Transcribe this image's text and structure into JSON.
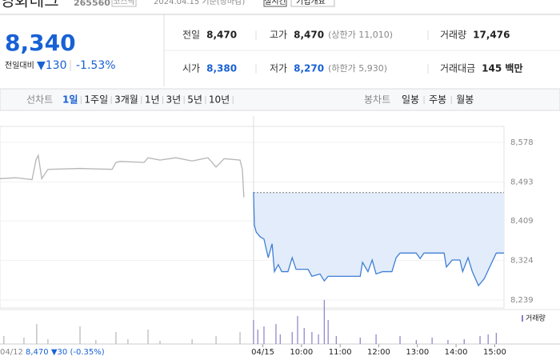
{
  "header": {
    "name": "영화테크",
    "code": "265560",
    "market": "코스닥",
    "date": "2024.04.15 기준(장마감)",
    "realtime": "실시간",
    "company": "기업개요"
  },
  "price": {
    "current": "8,340",
    "change_label": "전일대비",
    "change": "▼130",
    "change_pct": "-1.53%"
  },
  "summary": {
    "rows": [
      [
        {
          "label": "전일",
          "value": "8,470"
        },
        {
          "label": "고가",
          "value": "8,470",
          "note": "(상한가 11,010)"
        },
        {
          "label": "거래량",
          "value": "17,476"
        }
      ],
      [
        {
          "label": "시가",
          "value": "8,380"
        },
        {
          "label": "저가",
          "value": "8,270",
          "note": "(하한가 5,930)"
        },
        {
          "label": "거래대금",
          "value": "145 백만"
        }
      ]
    ]
  },
  "tabs": {
    "line_label": "선차트",
    "line_periods": [
      "1일",
      "1주일",
      "3개월",
      "1년",
      "3년",
      "5년",
      "10년"
    ],
    "selected": 0,
    "candle_label": "봉차트",
    "candle_periods": [
      "일봉",
      "주봉",
      "월봉"
    ]
  },
  "footer_info": {
    "date": "04/12",
    "price": "8,470",
    "change": "▼30",
    "change_pct": "(-0.35%)"
  },
  "chart_data": {
    "type": "line",
    "xlim": [
      2.2,
      15.24
    ],
    "ylim": [
      8239,
      8578
    ],
    "yticks": [
      {
        "value": 8578,
        "label": "8,578"
      },
      {
        "value": 8493,
        "label": "8,493"
      },
      {
        "value": 8409,
        "label": "8,409"
      },
      {
        "value": 8324,
        "label": "8,324"
      },
      {
        "value": 8239,
        "label": "8,239"
      }
    ],
    "xticks": [
      {
        "value": 9,
        "label": "04/15"
      },
      {
        "value": 10,
        "label": "10:00"
      },
      {
        "value": 11,
        "label": "11:00"
      },
      {
        "value": 12,
        "label": "12:00"
      },
      {
        "value": 13,
        "label": "13:00"
      },
      {
        "value": 14,
        "label": "14:00"
      },
      {
        "value": 15,
        "label": "15:00"
      }
    ],
    "baseline": 8470,
    "grid": true,
    "series": [
      {
        "color": "#b5b5b5",
        "x": [
          2.2,
          2.61,
          3.03,
          3.13,
          3.19,
          3.28,
          3.44,
          4.27,
          5.1,
          5.2,
          5.31,
          5.93,
          6.03,
          6.34,
          6.75,
          7.17,
          7.58,
          7.79,
          8.0,
          8.41,
          8.47,
          8.51
        ],
        "values": [
          8500,
          8502,
          8498,
          8540,
          8550,
          8500,
          8520,
          8522,
          8520,
          8535,
          8537,
          8535,
          8545,
          8540,
          8545,
          8538,
          8545,
          8525,
          8543,
          8540,
          8520,
          8460
        ]
      },
      {
        "color": "#3f7fd6",
        "fill": "#e3ecfa",
        "x": [
          8.76,
          8.78,
          8.83,
          8.93,
          9.03,
          9.14,
          9.24,
          9.3,
          9.4,
          9.49,
          9.65,
          9.76,
          9.86,
          10.17,
          10.27,
          10.48,
          10.59,
          10.69,
          11.52,
          11.58,
          11.72,
          11.83,
          11.93,
          12.1,
          12.34,
          12.45,
          12.55,
          12.97,
          13.07,
          13.17,
          13.69,
          13.75,
          13.9,
          14.1,
          14.17,
          14.31,
          14.42,
          14.58,
          14.73,
          14.87,
          15.04,
          15.24
        ],
        "values": [
          8471,
          8400,
          8385,
          8375,
          8370,
          8330,
          8360,
          8300,
          8315,
          8300,
          8300,
          8330,
          8305,
          8305,
          8290,
          8295,
          8280,
          8290,
          8290,
          8320,
          8300,
          8325,
          8295,
          8300,
          8300,
          8330,
          8340,
          8340,
          8328,
          8340,
          8340,
          8310,
          8325,
          8325,
          8300,
          8330,
          8300,
          8270,
          8285,
          8310,
          8340,
          8340
        ]
      }
    ],
    "volume": {
      "label": "거래량",
      "ylim": [
        0,
        1800
      ],
      "series": [
        {
          "color": "#b5b5b5",
          "x": [
            2.3,
            2.82,
            3.15,
            3.44,
            4.27,
            4.68,
            5.2,
            5.51,
            6.03,
            6.34,
            7.17,
            7.79,
            8.41
          ],
          "values": [
            300,
            240,
            750,
            180,
            660,
            150,
            450,
            180,
            540,
            120,
            180,
            300,
            450
          ]
        },
        {
          "color": "#8a7fc8",
          "x": [
            8.76,
            8.87,
            9.03,
            9.34,
            9.45,
            9.76,
            9.9,
            10.07,
            10.27,
            10.44,
            10.59,
            10.69,
            10.9,
            11.52,
            11.93,
            12.55,
            12.97,
            13.38,
            13.79,
            14.21,
            14.62,
            14.83,
            15.04
          ],
          "values": [
            900,
            540,
            660,
            750,
            360,
            450,
            1050,
            600,
            450,
            360,
            1650,
            900,
            300,
            240,
            360,
            300,
            150,
            240,
            150,
            180,
            300,
            360,
            420
          ]
        }
      ]
    }
  }
}
